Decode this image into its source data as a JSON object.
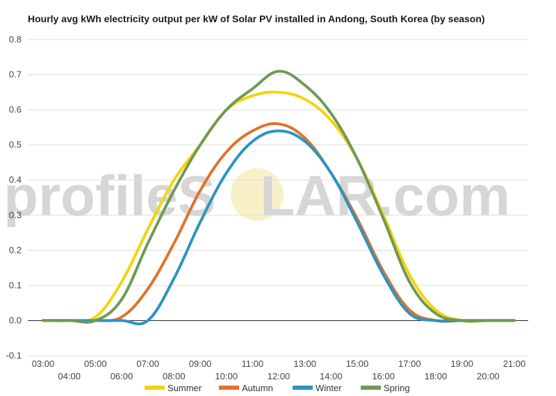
{
  "watermark": {
    "left": "profileS",
    "mid": "O",
    "right": "LAR.com"
  },
  "chart_data": {
    "type": "line",
    "title": "Hourly avg kWh electricity output per kW of Solar PV installed in Andong, South Korea (by season)",
    "xlabel": "",
    "ylabel": "",
    "x_ticks_upper": [
      "03:00",
      "05:00",
      "07:00",
      "09:00",
      "11:00",
      "13:00",
      "15:00",
      "17:00",
      "19:00",
      "21:00"
    ],
    "x_ticks_lower": [
      "04:00",
      "06:00",
      "08:00",
      "10:00",
      "12:00",
      "14:00",
      "16:00",
      "18:00",
      "20:00"
    ],
    "x": [
      3,
      4,
      5,
      6,
      7,
      8,
      9,
      10,
      11,
      12,
      13,
      14,
      15,
      16,
      17,
      18,
      19,
      20,
      21
    ],
    "ylim": [
      -0.1,
      0.8
    ],
    "y_ticks": [
      "-0.1",
      "0.0",
      "0.1",
      "0.2",
      "0.3",
      "0.4",
      "0.5",
      "0.6",
      "0.7",
      "0.8"
    ],
    "grid": true,
    "legend_position": "bottom",
    "series": [
      {
        "name": "Summer",
        "color": "#f5d30a",
        "values": [
          0,
          0,
          0.01,
          0.11,
          0.26,
          0.4,
          0.5,
          0.6,
          0.64,
          0.65,
          0.63,
          0.57,
          0.46,
          0.3,
          0.13,
          0.03,
          0,
          0,
          0
        ]
      },
      {
        "name": "Autumn",
        "color": "#e2722a",
        "values": [
          0,
          0,
          0,
          0.01,
          0.09,
          0.22,
          0.37,
          0.48,
          0.54,
          0.56,
          0.52,
          0.42,
          0.29,
          0.14,
          0.03,
          0,
          0,
          0,
          0
        ]
      },
      {
        "name": "Winter",
        "color": "#2b94c2",
        "values": [
          0,
          0,
          0,
          0,
          0,
          0.12,
          0.28,
          0.42,
          0.51,
          0.54,
          0.51,
          0.42,
          0.28,
          0.13,
          0.02,
          0,
          0,
          0,
          0
        ]
      },
      {
        "name": "Spring",
        "color": "#6e9a54",
        "values": [
          0,
          0,
          0,
          0.06,
          0.22,
          0.37,
          0.5,
          0.6,
          0.66,
          0.71,
          0.67,
          0.59,
          0.46,
          0.29,
          0.11,
          0.02,
          0,
          0,
          0
        ]
      }
    ]
  }
}
